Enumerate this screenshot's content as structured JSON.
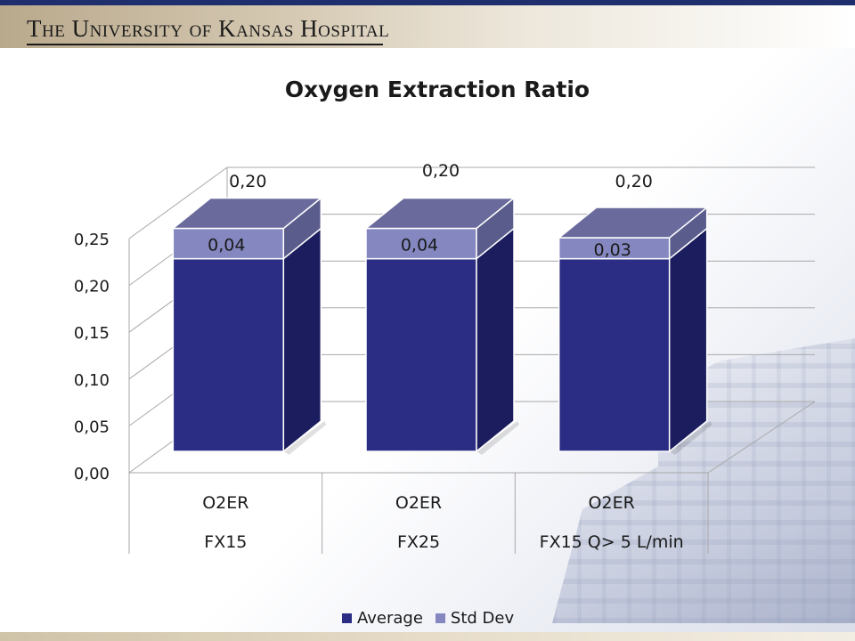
{
  "header": {
    "title": "The University of Kansas Hospital"
  },
  "colors": {
    "average": "#2b2d84",
    "std_dev": "#8487c0",
    "top_face": "#6a6b9c",
    "side_dark": "#1b1d5e",
    "side_light": "#5a5c8c"
  },
  "chart_data": {
    "type": "bar",
    "subtype": "stacked-3d",
    "title": "Oxygen Extraction Ratio",
    "categories": [
      {
        "line1": "O2ER",
        "line2": "FX15"
      },
      {
        "line1": "O2ER",
        "line2": "FX25"
      },
      {
        "line1": "O2ER",
        "line2": "FX15 Q> 5 L/min"
      }
    ],
    "series": [
      {
        "name": "Average",
        "values": [
          0.2,
          0.2,
          0.2
        ],
        "labels": [
          "0,20",
          "0,20",
          "0,20"
        ]
      },
      {
        "name": "Std Dev",
        "values": [
          0.04,
          0.04,
          0.03
        ],
        "labels": [
          "0,04",
          "0,04",
          "0,03"
        ]
      }
    ],
    "yticks": [
      "0,00",
      "0,05",
      "0,10",
      "0,15",
      "0,20",
      "0,25"
    ],
    "ylim": [
      0,
      0.25
    ],
    "grid": true,
    "legend_position": "bottom"
  }
}
